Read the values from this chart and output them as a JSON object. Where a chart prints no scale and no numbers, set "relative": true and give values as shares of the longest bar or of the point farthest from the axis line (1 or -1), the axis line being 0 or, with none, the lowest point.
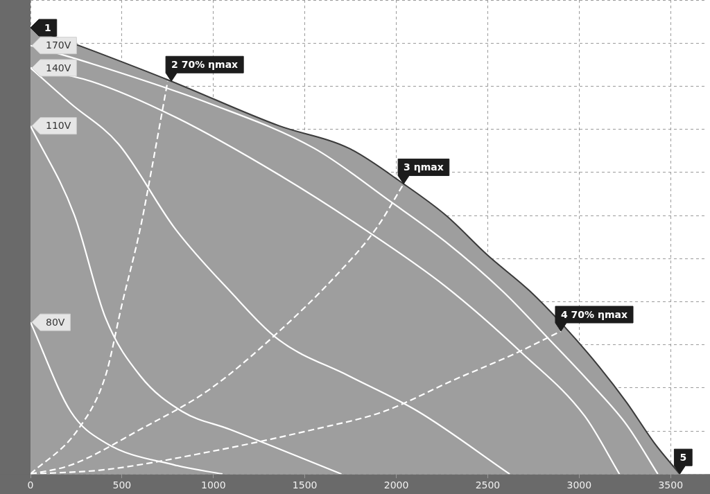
{
  "chart_data": {
    "type": "line",
    "relative": true,
    "xlim": [
      0,
      3700
    ],
    "xticks": [
      0,
      500,
      1000,
      1500,
      2000,
      2500,
      3000,
      3500
    ],
    "grid": true,
    "legend": false,
    "marker": "none",
    "line_style": "solid",
    "series": [
      {
        "type": "area",
        "color": "#9e9e9e",
        "x": [
          0,
          330,
          770,
          1360,
          1740,
          2040,
          2270,
          2500,
          2730,
          2920,
          3110,
          3260,
          3410,
          3550
        ],
        "values": [
          1,
          0.95,
          0.88,
          0.78,
          0.73,
          0.65,
          0.58,
          0.49,
          0.41,
          0.33,
          0.24,
          0.16,
          0.07,
          0
        ]
      },
      {
        "name": "170V",
        "color": "#ffffff",
        "x": [
          0,
          330,
          980,
          1550,
          1970,
          2270,
          2580,
          2840,
          3070,
          3260,
          3430
        ],
        "values": [
          0.96,
          0.92,
          0.83,
          0.73,
          0.61,
          0.52,
          0.41,
          0.3,
          0.2,
          0.11,
          0
        ]
      },
      {
        "name": "140V",
        "color": "#ffffff",
        "x": [
          0,
          330,
          790,
          1360,
          1820,
          2270,
          2690,
          3030,
          3220
        ],
        "values": [
          0.91,
          0.88,
          0.8,
          0.67,
          0.55,
          0.42,
          0.27,
          0.13,
          0
        ]
      },
      {
        "color": "#ffffff",
        "x": [
          0,
          220,
          480,
          790,
          1090,
          1360,
          1740,
          2120,
          2620
        ],
        "values": [
          0.91,
          0.83,
          0.74,
          0.55,
          0.41,
          0.3,
          0.22,
          0.14,
          0
        ]
      },
      {
        "name": "110V",
        "color": "#ffffff",
        "x": [
          0,
          240,
          410,
          600,
          830,
          1090,
          1700
        ],
        "values": [
          0.78,
          0.58,
          0.35,
          0.22,
          0.14,
          0.1,
          0
        ]
      },
      {
        "name": "80V",
        "color": "#ffffff",
        "x": [
          0,
          220,
          410,
          790,
          1050
        ],
        "values": [
          0.34,
          0.14,
          0.07,
          0.02,
          0
        ]
      },
      {
        "color": "#ffffff",
        "line_style": "dashed",
        "x": [
          0,
          260,
          410,
          500,
          600,
          670,
          750
        ],
        "values": [
          0,
          0.1,
          0.22,
          0.38,
          0.55,
          0.7,
          0.88
        ]
      },
      {
        "color": "#ffffff",
        "line_style": "dashed",
        "x": [
          0,
          220,
          600,
          980,
          1360,
          1660,
          1890,
          2040
        ],
        "values": [
          0,
          0.02,
          0.1,
          0.19,
          0.32,
          0.44,
          0.55,
          0.65
        ]
      },
      {
        "color": "#ffffff",
        "line_style": "dashed",
        "x": [
          0,
          410,
          980,
          1550,
          1930,
          2310,
          2650,
          2900
        ],
        "values": [
          0,
          0.01,
          0.05,
          0.1,
          0.14,
          0.21,
          0.27,
          0.32
        ]
      }
    ],
    "annotations": [
      {
        "text": "1",
        "x": 0,
        "y": 1
      },
      {
        "text": "2 70% ηmax",
        "x": 770,
        "y": 0.88
      },
      {
        "text": "3 ηmax",
        "x": 2040,
        "y": 0.65
      },
      {
        "text": "4 70% ηmax",
        "x": 2900,
        "y": 0.32
      },
      {
        "text": "5",
        "x": 3550,
        "y": 0
      }
    ]
  }
}
